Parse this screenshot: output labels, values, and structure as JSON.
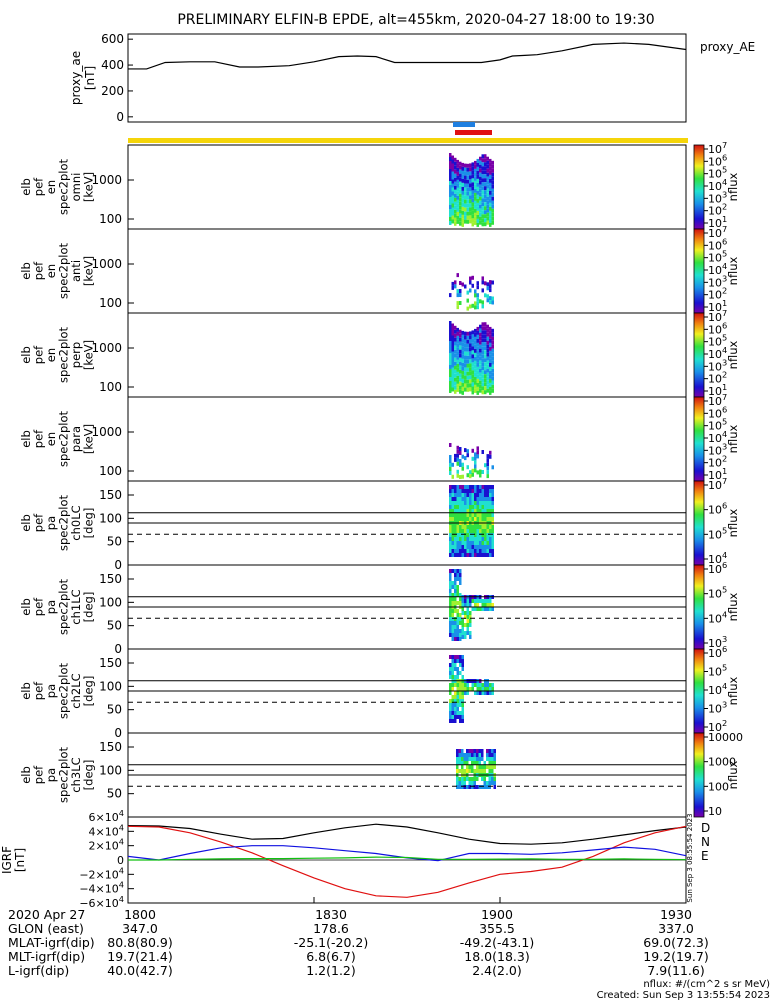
{
  "title": "PRELIMINARY ELFIN-B EPDE, alt=455km, 2020-04-27 18:00 to 19:30",
  "colors": {
    "orbit_blue": "#1f7fe0",
    "orbit_red": "#e01010",
    "science_zone": "#f5d50a",
    "bx": "#1010e0",
    "by": "#e01010",
    "bz": "#10c010"
  },
  "chart_data": [
    {
      "type": "line",
      "ylabel": "proxy_ae [nT]",
      "legend": "proxy_AE",
      "yticks": [
        "600",
        "400",
        "200",
        "0"
      ],
      "ylim": [
        -40,
        640
      ],
      "xlim": [
        0,
        90
      ],
      "series": [
        {
          "name": "proxy_AE",
          "x": [
            0,
            3,
            6,
            10,
            14,
            18,
            21,
            26,
            30,
            34,
            37,
            40,
            43,
            46,
            50,
            54,
            57,
            60,
            62,
            64,
            66,
            70,
            75,
            80,
            84,
            90
          ],
          "values": [
            370,
            370,
            420,
            425,
            425,
            385,
            385,
            395,
            425,
            465,
            470,
            465,
            420,
            420,
            420,
            420,
            420,
            440,
            470,
            475,
            480,
            510,
            560,
            570,
            560,
            520
          ]
        }
      ]
    },
    {
      "type": "heatmap",
      "ylabel": [
        "elb",
        "pef",
        "en",
        "spec2plot",
        "omni",
        "[keV]"
      ],
      "yticks": [
        "1000",
        "100"
      ],
      "cbar_ticks": [
        "10^1",
        "10^2",
        "10^3",
        "10^4",
        "10^5",
        "10^6",
        "10^7"
      ],
      "cbar_label": "nflux",
      "profile": "full"
    },
    {
      "type": "heatmap",
      "ylabel": [
        "elb",
        "pef",
        "en",
        "spec2plot",
        "anti",
        "[keV]"
      ],
      "yticks": [
        "1000",
        "100"
      ],
      "cbar_ticks": [
        "10^1",
        "10^2",
        "10^3",
        "10^4",
        "10^5",
        "10^6",
        "10^7"
      ],
      "cbar_label": "nflux",
      "profile": "sparse"
    },
    {
      "type": "heatmap",
      "ylabel": [
        "elb",
        "pef",
        "en",
        "spec2plot",
        "perp",
        "[keV]"
      ],
      "yticks": [
        "1000",
        "100"
      ],
      "cbar_ticks": [
        "10^1",
        "10^2",
        "10^3",
        "10^4",
        "10^5",
        "10^6",
        "10^7"
      ],
      "cbar_label": "nflux",
      "profile": "full"
    },
    {
      "type": "heatmap",
      "ylabel": [
        "elb",
        "pef",
        "en",
        "spec2plot",
        "para",
        "[keV]"
      ],
      "yticks": [
        "1000",
        "100"
      ],
      "cbar_ticks": [
        "10^1",
        "10^2",
        "10^3",
        "10^4",
        "10^5",
        "10^6",
        "10^7"
      ],
      "cbar_label": "nflux",
      "profile": "sparse"
    },
    {
      "type": "heatmap",
      "ylabel": [
        "elb",
        "pef",
        "pa",
        "spec2plot",
        "ch0LC",
        "[deg]"
      ],
      "yticks": [
        "150",
        "100",
        "50",
        "0"
      ],
      "ylim": [
        0,
        180
      ],
      "cbar_ticks": [
        "10^4",
        "10^5",
        "10^6",
        "10^7"
      ],
      "cbar_label": "nflux",
      "profile": "pa_wide"
    },
    {
      "type": "heatmap",
      "ylabel": [
        "elb",
        "pef",
        "pa",
        "spec2plot",
        "ch1LC",
        "[deg]"
      ],
      "yticks": [
        "150",
        "100",
        "50",
        "0"
      ],
      "ylim": [
        0,
        180
      ],
      "cbar_ticks": [
        "10^3",
        "10^4",
        "10^5",
        "10^6"
      ],
      "cbar_label": "nflux",
      "profile": "pa_mid"
    },
    {
      "type": "heatmap",
      "ylabel": [
        "elb",
        "pef",
        "pa",
        "spec2plot",
        "ch2LC",
        "[deg]"
      ],
      "yticks": [
        "150",
        "100",
        "50",
        "0"
      ],
      "ylim": [
        0,
        180
      ],
      "cbar_ticks": [
        "10^2",
        "10^3",
        "10^4",
        "10^5",
        "10^6"
      ],
      "cbar_label": "nflux",
      "profile": "pa_narrow"
    },
    {
      "type": "heatmap",
      "ylabel": [
        "elb",
        "pef",
        "pa",
        "spec2plot",
        "ch3LC",
        "[deg]"
      ],
      "yticks": [
        "150",
        "100",
        "50"
      ],
      "ylim": [
        0,
        180
      ],
      "cbar_ticks": [
        "10",
        "100",
        "1000",
        "10000"
      ],
      "cbar_label": "nflux",
      "profile": "pa_small"
    },
    {
      "type": "line",
      "ylabel": "IGRF [nT]",
      "yticks": [
        "6×10^4",
        "4×10^4",
        "2×10^4",
        "0",
        "−2×10^4",
        "−4×10^4",
        "−6×10^4"
      ],
      "ylim": [
        -60000,
        60000
      ],
      "xlim": [
        0,
        90
      ],
      "legend_labels": [
        "D",
        "N",
        "E"
      ],
      "series": [
        {
          "name": "total",
          "x": [
            0,
            5,
            10,
            15,
            20,
            25,
            30,
            35,
            40,
            45,
            50,
            55,
            60,
            65,
            70,
            75,
            80,
            85,
            90
          ],
          "values": [
            48000,
            47500,
            44000,
            36000,
            29000,
            30000,
            38000,
            45000,
            50000,
            46000,
            38000,
            29000,
            23000,
            22000,
            24000,
            29000,
            35000,
            41000,
            46000
          ]
        },
        {
          "name": "D",
          "x": [
            0,
            5,
            10,
            15,
            20,
            25,
            30,
            35,
            40,
            45,
            50,
            55,
            60,
            65,
            70,
            75,
            80,
            85,
            90
          ],
          "values": [
            47000,
            46000,
            38000,
            25000,
            10000,
            -8000,
            -25000,
            -40000,
            -50000,
            -52000,
            -45000,
            -32000,
            -20000,
            -16000,
            -10000,
            5000,
            24000,
            38000,
            47000
          ]
        },
        {
          "name": "N",
          "x": [
            0,
            5,
            10,
            15,
            20,
            25,
            30,
            35,
            40,
            45,
            50,
            55,
            60,
            65,
            70,
            75,
            80,
            85,
            90
          ],
          "values": [
            5000,
            0,
            9000,
            17000,
            20000,
            20000,
            17000,
            13000,
            9000,
            3000,
            -1000,
            9000,
            9000,
            8000,
            10000,
            14000,
            18000,
            15000,
            6000
          ]
        },
        {
          "name": "E",
          "x": [
            0,
            5,
            10,
            15,
            20,
            25,
            30,
            35,
            40,
            45,
            50,
            55,
            60,
            65,
            70,
            75,
            80,
            85,
            90
          ],
          "values": [
            0,
            0,
            1000,
            1500,
            2000,
            2000,
            2500,
            3000,
            4000,
            3500,
            1000,
            1000,
            1200,
            1500,
            1000,
            1000,
            1500,
            1000,
            500
          ]
        }
      ]
    }
  ],
  "footer": {
    "date": "2020 Apr 27",
    "ticks": [
      "1800",
      "1830",
      "1900",
      "1930"
    ],
    "rows": [
      {
        "label": "GLON (east)",
        "values": [
          "347.0",
          "178.6",
          "355.5",
          "337.0"
        ]
      },
      {
        "label": "MLAT-igrf(dip)",
        "values": [
          "80.8(80.9)",
          "-25.1(-20.2)",
          "-49.2(-43.1)",
          "69.0(72.3)"
        ]
      },
      {
        "label": "MLT-igrf(dip)",
        "values": [
          "19.7(21.4)",
          "6.8(6.7)",
          "18.0(18.3)",
          "19.2(19.7)"
        ]
      },
      {
        "label": "L-igrf(dip)",
        "values": [
          "40.0(42.7)",
          "1.2(1.2)",
          "2.4(2.0)",
          "7.9(11.6)"
        ]
      }
    ],
    "units": "nflux: #/(cm^2 s sr MeV)",
    "created": "Created: Sun Sep  3 13:55:54 2023",
    "side_note": "Sun Sep  3 08:55:54 2023"
  }
}
